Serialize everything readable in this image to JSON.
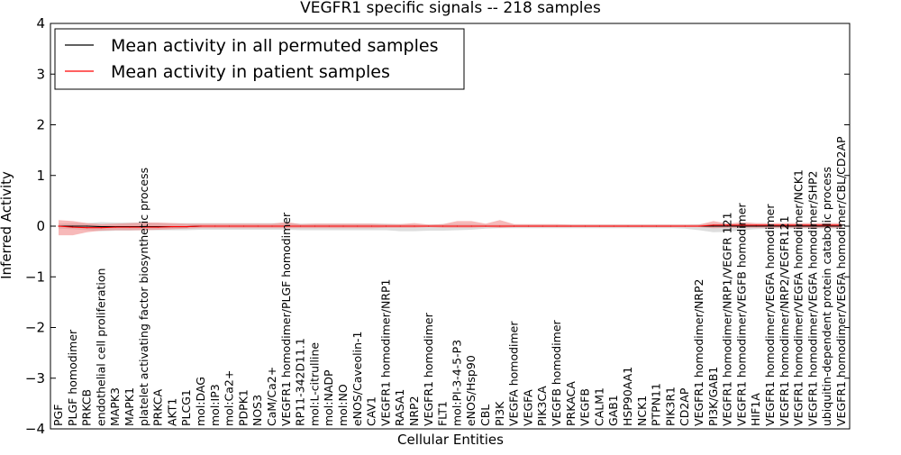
{
  "chart_data": {
    "type": "line",
    "title": "VEGFR1 specific signals -- 218 samples",
    "xlabel": "Cellular Entities",
    "ylabel": "Inferred Activity",
    "ylim": [
      -4,
      4
    ],
    "yticks": [
      4,
      3,
      2,
      1,
      0,
      -1,
      -2,
      -3,
      -4
    ],
    "ytick_labels": [
      "4",
      "3",
      "2",
      "1",
      "0",
      "−1",
      "−2",
      "−3",
      "−4"
    ],
    "grid": false,
    "legend_position": "top-left",
    "categories": [
      "PGF",
      "PLGF homodimer",
      "PRKCB",
      "endothelial cell proliferation",
      "MAPK3",
      "MAPK1",
      "platelet activating factor biosynthetic process",
      "PRKCA",
      "AKT1",
      "PLCG1",
      "mol:DAG",
      "mol:IP3",
      "mol:Ca2+",
      "PDPK1",
      "NOS3",
      "CaM/Ca2+",
      "VEGFR1 homodimer/PLGF homodimer",
      "RP11-342D11.1",
      "mol:L-citrulline",
      "mol:NADP",
      "mol:NO",
      "eNOS/Caveolin-1",
      "CAV1",
      "VEGFR1 homodimer/NRP1",
      "RASA1",
      "NRP2",
      "VEGFR1 homodimer",
      "FLT1",
      "mol:PI-3-4-5-P3",
      "eNOS/Hsp90",
      "CBL",
      "PI3K",
      "VEGFA homodimer",
      "VEGFA",
      "PIK3CA",
      "VEGFB homodimer",
      "PRKACA",
      "VEGFB",
      "CALM1",
      "GAB1",
      "HSP90AA1",
      "NCK1",
      "PTPN11",
      "PIK3R1",
      "CD2AP",
      "VEGFR1 homodimer/NRP2",
      "PI3K/GAB1",
      "VEGFR1 homodimer/NRP1/VEGFR 121",
      "VEGFR1 homodimer/VEGFB homodimer",
      "HIF1A",
      "VEGFR1 homodimer/VEGFA homodimer",
      "VEGFR1 homodimer/NRP2/VEGFR121",
      "VEGFR1 homodimer/VEGFA homodimer/NCK1",
      "VEGFR1 homodimer/VEGFA homodimer/SHP2",
      "ubiquitin-dependent protein catabolic process",
      "VEGFR1 homodimer/VEGFA homodimer/CBL/CD2AP"
    ],
    "series": [
      {
        "name": "Mean activity in all permuted samples",
        "color": "#000000",
        "band_color": "#c8c8c8",
        "values": [
          0.0,
          0.0,
          0.0,
          -0.01,
          -0.01,
          -0.01,
          -0.01,
          -0.01,
          -0.01,
          -0.01,
          0.0,
          0.0,
          0.0,
          0.0,
          0.0,
          0.0,
          0.0,
          0.0,
          0.0,
          0.0,
          0.0,
          0.0,
          0.0,
          0.0,
          0.0,
          0.0,
          0.0,
          0.0,
          0.0,
          0.0,
          0.0,
          0.0,
          0.0,
          0.0,
          0.0,
          0.0,
          0.0,
          0.0,
          0.0,
          0.0,
          0.0,
          0.0,
          0.0,
          0.0,
          0.0,
          0.0,
          0.0,
          0.0,
          0.0,
          0.0,
          0.0,
          0.0,
          0.0,
          0.0,
          0.0,
          0.0
        ],
        "band_upper": [
          0.05,
          0.06,
          0.06,
          0.08,
          0.07,
          0.07,
          0.07,
          0.06,
          0.06,
          0.06,
          0.06,
          0.06,
          0.06,
          0.06,
          0.06,
          0.06,
          0.06,
          0.05,
          0.05,
          0.05,
          0.05,
          0.05,
          0.05,
          0.05,
          0.04,
          0.03,
          0.03,
          0.04,
          0.04,
          0.04,
          0.03,
          0.03,
          0.03,
          0.03,
          0.03,
          0.03,
          0.03,
          0.03,
          0.03,
          0.03,
          0.03,
          0.03,
          0.03,
          0.03,
          0.03,
          0.04,
          0.05,
          0.05,
          0.05,
          0.04,
          0.04,
          0.04,
          0.04,
          0.04,
          0.04,
          0.04
        ],
        "band_lower": [
          -0.05,
          -0.06,
          -0.08,
          -0.1,
          -0.09,
          -0.09,
          -0.08,
          -0.08,
          -0.08,
          -0.08,
          -0.07,
          -0.07,
          -0.07,
          -0.07,
          -0.07,
          -0.07,
          -0.07,
          -0.08,
          -0.08,
          -0.08,
          -0.08,
          -0.08,
          -0.08,
          -0.08,
          -0.1,
          -0.1,
          -0.09,
          -0.09,
          -0.08,
          -0.07,
          -0.05,
          -0.04,
          -0.04,
          -0.04,
          -0.04,
          -0.04,
          -0.04,
          -0.04,
          -0.04,
          -0.04,
          -0.04,
          -0.04,
          -0.04,
          -0.04,
          -0.05,
          -0.08,
          -0.12,
          -0.11,
          -0.08,
          -0.06,
          -0.05,
          -0.05,
          -0.05,
          -0.05,
          -0.05,
          -0.05
        ]
      },
      {
        "name": "Mean activity in patient samples",
        "color": "#ff0000",
        "band_color": "#f08080",
        "values": [
          0.0,
          -0.02,
          -0.03,
          -0.03,
          -0.02,
          -0.02,
          -0.02,
          -0.02,
          -0.01,
          -0.01,
          0.0,
          0.0,
          0.0,
          0.0,
          0.0,
          0.0,
          0.0,
          0.0,
          0.0,
          0.0,
          0.0,
          0.0,
          0.0,
          0.0,
          0.0,
          0.0,
          0.0,
          0.0,
          0.0,
          0.0,
          0.0,
          0.0,
          0.0,
          0.0,
          0.0,
          0.0,
          0.0,
          0.0,
          0.0,
          0.0,
          0.0,
          0.0,
          0.0,
          0.0,
          0.0,
          0.0,
          0.02,
          0.02,
          0.02,
          0.02,
          0.02,
          0.02,
          0.02,
          0.02,
          0.02,
          0.02
        ],
        "band_upper": [
          0.12,
          0.1,
          0.06,
          0.04,
          0.05,
          0.06,
          0.07,
          0.07,
          0.06,
          0.05,
          0.05,
          0.05,
          0.05,
          0.05,
          0.05,
          0.05,
          0.08,
          0.04,
          0.05,
          0.05,
          0.05,
          0.05,
          0.05,
          0.04,
          0.04,
          0.06,
          0.03,
          0.04,
          0.1,
          0.1,
          0.05,
          0.12,
          0.04,
          0.04,
          0.04,
          0.04,
          0.03,
          0.03,
          0.03,
          0.03,
          0.03,
          0.03,
          0.03,
          0.03,
          0.03,
          0.03,
          0.1,
          0.05,
          0.08,
          0.06,
          0.06,
          0.06,
          0.06,
          0.06,
          0.06,
          0.06
        ],
        "band_lower": [
          -0.18,
          -0.18,
          -0.12,
          -0.09,
          -0.08,
          -0.08,
          -0.08,
          -0.07,
          -0.06,
          -0.05,
          -0.04,
          -0.04,
          -0.04,
          -0.04,
          -0.04,
          -0.04,
          -0.04,
          -0.04,
          -0.04,
          -0.04,
          -0.04,
          -0.04,
          -0.04,
          -0.03,
          -0.03,
          -0.03,
          -0.02,
          -0.03,
          -0.03,
          -0.03,
          -0.02,
          -0.03,
          -0.02,
          -0.02,
          -0.02,
          -0.02,
          -0.02,
          -0.02,
          -0.02,
          -0.02,
          -0.02,
          -0.02,
          -0.02,
          -0.02,
          -0.02,
          -0.02,
          -0.04,
          -0.03,
          -0.03,
          -0.03,
          -0.03,
          -0.03,
          -0.03,
          -0.03,
          -0.03,
          -0.03
        ]
      }
    ]
  }
}
